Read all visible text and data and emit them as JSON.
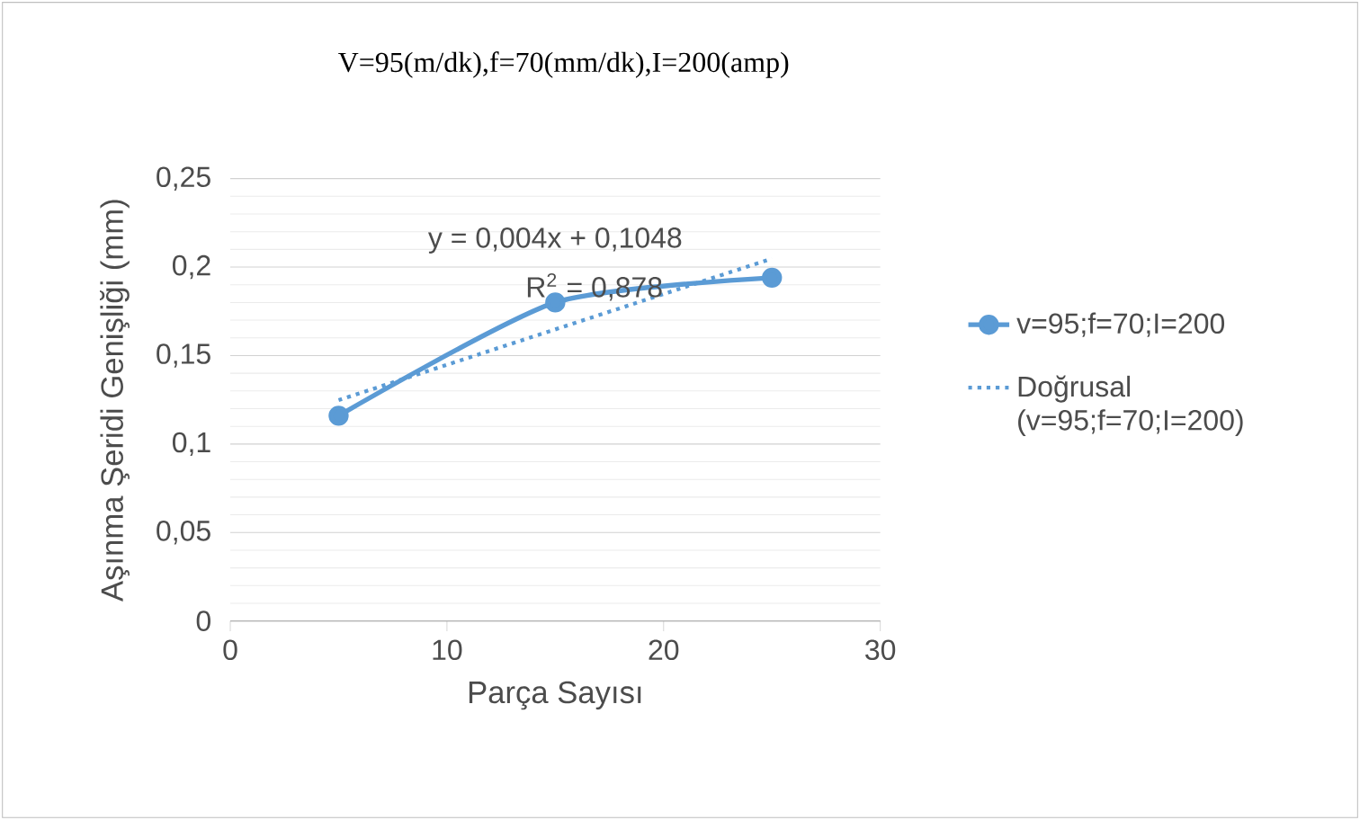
{
  "chart_data": {
    "type": "line",
    "title": "V=95(m/dk),f=70(mm/dk),I=200(amp)",
    "xlabel": "Parça Sayısı",
    "ylabel": "Aşınma Şeridi Genişliği   (mm)",
    "x": [
      5,
      15,
      25
    ],
    "series": [
      {
        "name": "v=95;f=70;I=200",
        "color": "#5b9bd5",
        "values": [
          0.116,
          0.18,
          0.194
        ],
        "marker": "circle",
        "line_style": "solid"
      },
      {
        "name": "Doğrusal (v=95;f=70;I=200)",
        "type": "line",
        "color": "#5b9bd5",
        "x": [
          5,
          25
        ],
        "values": [
          0.1248,
          0.2048
        ],
        "marker": "none",
        "line_style": "dotted"
      }
    ],
    "annotations": [
      "y = 0,004x + 0,1048",
      "R$^{2}$ = 0,878"
    ],
    "xlim": [
      0,
      30
    ],
    "xticks": [
      0,
      10,
      20,
      30
    ],
    "ylim": [
      0,
      0.25
    ],
    "yticks": [
      0,
      {
        "value": 0.05,
        "label": "0,05"
      },
      {
        "value": 0.1,
        "label": "0,1"
      },
      {
        "value": 0.15,
        "label": "0,15"
      },
      {
        "value": 0.2,
        "label": "0,2"
      },
      {
        "value": 0.25,
        "label": "0,25"
      }
    ],
    "grid": "y",
    "legend": "right"
  }
}
